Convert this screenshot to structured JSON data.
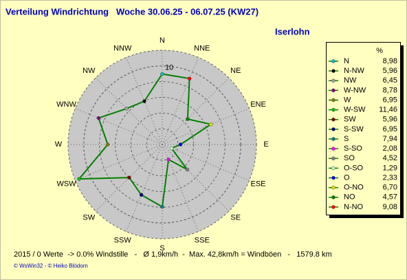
{
  "title": "Verteilung Windrichtung   Woche 30.06.25 - 06.07.25 (KW27)",
  "location": "Iserlohn",
  "chart_data": {
    "type": "radar",
    "categories": [
      "N",
      "NNE",
      "NE",
      "ENE",
      "E",
      "ESE",
      "SE",
      "SSE",
      "S",
      "SSW",
      "SW",
      "WSW",
      "W",
      "WNW",
      "NW",
      "NNW"
    ],
    "legend_names": [
      "N",
      "N-NO",
      "NO",
      "O-NO",
      "O",
      "O-SO",
      "SO",
      "S-SO",
      "S",
      "S-SW",
      "SW",
      "W-SW",
      "W",
      "W-NW",
      "NW",
      "N-NW"
    ],
    "values": [
      8.98,
      9.08,
      4.57,
      6.7,
      2.33,
      1.29,
      4.52,
      2.08,
      7.94,
      6.95,
      5.96,
      11.46,
      6.95,
      8.78,
      6.45,
      5.96
    ],
    "value_labels": [
      "8,98",
      "9,08",
      "4,57",
      "6,70",
      "2,33",
      "1,29",
      "4,52",
      "2,08",
      "7,94",
      "6,95",
      "5,96",
      "11,46",
      "6,95",
      "8,78",
      "6,45",
      "5,96"
    ],
    "colors": [
      "#00c0c0",
      "#ff0000",
      "#008000",
      "#e0e000",
      "#0000ff",
      "#c0ffc0",
      "#808080",
      "#ff00ff",
      "#008080",
      "#000080",
      "#800000",
      "#00c000",
      "#808000",
      "#800080",
      "#a0a0a0",
      "#000000"
    ],
    "line_color": "#008000",
    "rlim": [
      0,
      12
    ],
    "rticks": [
      10
    ],
    "legend_unit": "%"
  },
  "footer": "2015 / 0 Werte  -> 0.0% Windstille   -   Ø 1,9km/h  -  Max. 42,8km/h = Windböen   -   1579.8 km",
  "credit": "© WsWin32  -  © Heiko Blödorn"
}
